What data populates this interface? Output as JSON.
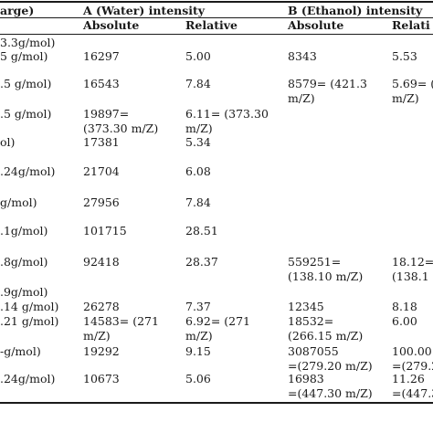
{
  "header": {
    "col0": "arge)",
    "groupA": "A (Water) intensity",
    "groupB": "B (Ethanol) intensity",
    "absA": "Absolute",
    "relA": "Relative",
    "absB": "Absolute",
    "relB": "Relati"
  },
  "rows": [
    {
      "c0": [
        "3.3g/mol)",
        "5 g/mol)"
      ],
      "absA": [
        "16297"
      ],
      "relA": [
        "5.00"
      ],
      "absB": [
        "8343"
      ],
      "relB": [
        "5.53"
      ]
    },
    {
      "c0": [
        ".5 g/mol)"
      ],
      "absA": [
        "16543"
      ],
      "relA": [
        "7.84"
      ],
      "absB": [
        "8579= (421.3",
        "m/Z)"
      ],
      "relB": [
        "5.69= (4",
        "m/Z)"
      ]
    },
    {
      "c0": [
        ".5 g/mol)"
      ],
      "absA": [
        "19897=",
        "(373.30 m/Z)"
      ],
      "relA": [
        "6.11= (373.30",
        "m/Z)"
      ],
      "absB": [],
      "relB": []
    },
    {
      "c0": [
        "ol)"
      ],
      "absA": [
        "17381"
      ],
      "relA": [
        "5.34"
      ],
      "absB": [],
      "relB": []
    },
    {
      "c0": [
        ".24g/mol)"
      ],
      "absA": [
        "21704"
      ],
      "relA": [
        "6.08"
      ],
      "absB": [],
      "relB": []
    },
    {
      "c0": [
        " g/mol)"
      ],
      "absA": [
        "27956"
      ],
      "relA": [
        "7.84"
      ],
      "absB": [],
      "relB": []
    },
    {
      "c0": [
        ".1g/mol)"
      ],
      "absA": [
        "101715"
      ],
      "relA": [
        "28.51"
      ],
      "absB": [],
      "relB": []
    },
    {
      "c0": [
        ".8g/mol)"
      ],
      "absA": [
        "92418"
      ],
      "relA": [
        "28.37"
      ],
      "absB": [
        "559251=",
        "(138.10 m/Z)"
      ],
      "relB": [
        "18.12=",
        "(138.1"
      ]
    },
    {
      "c0": [
        ".9g/mol)",
        ".14 g/mol)"
      ],
      "absA": [
        "26278"
      ],
      "relA": [
        "7.37"
      ],
      "absB": [
        "12345"
      ],
      "relB": [
        "8.18"
      ]
    },
    {
      "c0": [
        ".21 g/mol)"
      ],
      "absA": [
        "14583= (271",
        "m/Z)"
      ],
      "relA": [
        "6.92= (271",
        "m/Z)"
      ],
      "absB": [
        "18532=",
        "(266.15 m/Z)"
      ],
      "relB": [
        "6.00"
      ]
    },
    {
      "c0": [
        "-g/mol)"
      ],
      "absA": [
        "19292"
      ],
      "relA": [
        "9.15"
      ],
      "absB": [
        "3087055",
        "=(279.20 m/Z)"
      ],
      "relB": [
        "100.00",
        "=(279.2"
      ]
    },
    {
      "c0": [
        ".24g/mol)"
      ],
      "absA": [
        "10673"
      ],
      "relA": [
        "5.06"
      ],
      "absB": [
        "16983",
        "=(447.30 m/Z)"
      ],
      "relB": [
        "11.26",
        "=(447.3"
      ]
    }
  ]
}
